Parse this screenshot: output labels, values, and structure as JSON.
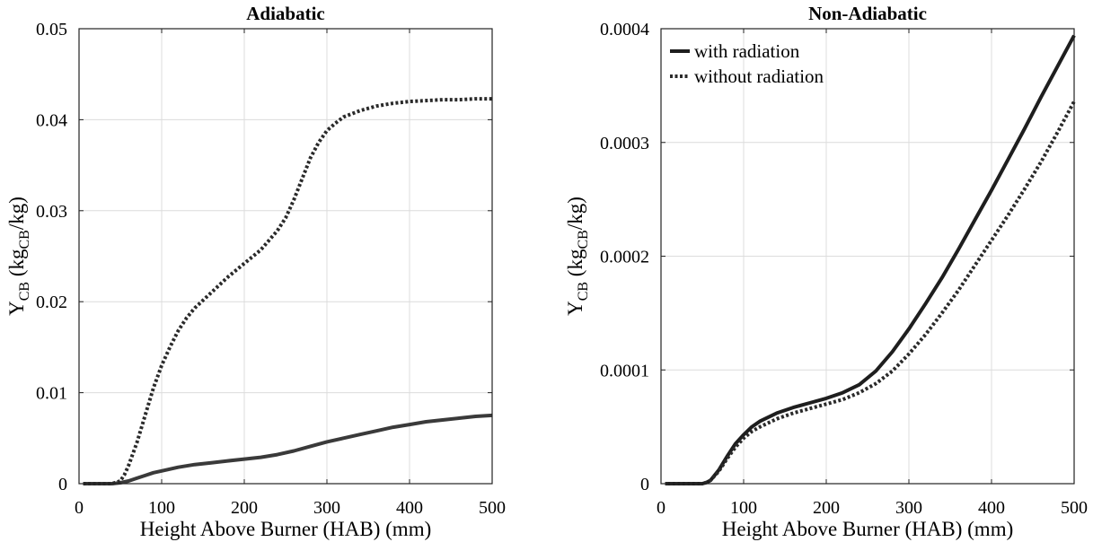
{
  "chart_data": [
    {
      "type": "line",
      "title": "Adiabatic",
      "xlabel": "Height Above Burner (HAB) (mm)",
      "ylabel": {
        "main": "Y",
        "main_sub": "CB",
        "unit_pre": " (kg",
        "unit_sub": "CB",
        "unit_post": "/kg)"
      },
      "xlim": [
        0,
        500
      ],
      "ylim": [
        0,
        0.05
      ],
      "xticks": [
        0,
        100,
        200,
        300,
        400,
        500
      ],
      "xtick_labels": [
        "0",
        "100",
        "200",
        "300",
        "400",
        "500"
      ],
      "yticks": [
        0,
        0.01,
        0.02,
        0.03,
        0.04,
        0.05
      ],
      "ytick_labels": [
        "0",
        "0.01",
        "0.02",
        "0.03",
        "0.04",
        "0.05"
      ],
      "grid": true,
      "series": [
        {
          "style": "solid",
          "color": "#3a3a3a",
          "x": [
            5,
            40,
            50,
            60,
            70,
            80,
            90,
            100,
            120,
            140,
            160,
            180,
            200,
            220,
            240,
            260,
            280,
            300,
            320,
            340,
            360,
            380,
            400,
            420,
            440,
            460,
            480,
            500
          ],
          "y": [
            0,
            0,
            0.0001,
            0.0003,
            0.0006,
            0.0009,
            0.0012,
            0.0014,
            0.0018,
            0.0021,
            0.0023,
            0.0025,
            0.0027,
            0.0029,
            0.0032,
            0.0036,
            0.0041,
            0.0046,
            0.005,
            0.0054,
            0.0058,
            0.0062,
            0.0065,
            0.0068,
            0.007,
            0.0072,
            0.0074,
            0.0075
          ]
        },
        {
          "style": "dotted",
          "color": "#2a2a2a",
          "x": [
            5,
            40,
            50,
            55,
            60,
            70,
            80,
            90,
            100,
            110,
            120,
            130,
            140,
            160,
            180,
            200,
            220,
            240,
            250,
            260,
            270,
            280,
            290,
            300,
            310,
            320,
            340,
            360,
            380,
            400,
            420,
            440,
            460,
            480,
            500
          ],
          "y": [
            0,
            0,
            0.0003,
            0.001,
            0.002,
            0.0045,
            0.0075,
            0.0105,
            0.013,
            0.015,
            0.0168,
            0.0182,
            0.0193,
            0.021,
            0.0227,
            0.0242,
            0.0257,
            0.0278,
            0.0292,
            0.0312,
            0.0335,
            0.0358,
            0.0375,
            0.0388,
            0.0396,
            0.0403,
            0.041,
            0.0415,
            0.0418,
            0.042,
            0.0421,
            0.0422,
            0.0422,
            0.0423,
            0.0423
          ]
        }
      ]
    },
    {
      "type": "line",
      "title": "Non-Adiabatic",
      "xlabel": "Height Above Burner (HAB) (mm)",
      "ylabel": {
        "main": "Y",
        "main_sub": "CB",
        "unit_pre": " (kg",
        "unit_sub": "CB",
        "unit_post": "/kg)"
      },
      "xlim": [
        0,
        500
      ],
      "ylim": [
        0,
        0.0004
      ],
      "xticks": [
        0,
        100,
        200,
        300,
        400,
        500
      ],
      "xtick_labels": [
        "0",
        "100",
        "200",
        "300",
        "400",
        "500"
      ],
      "yticks": [
        0,
        0.0001,
        0.0002,
        0.0003,
        0.0004
      ],
      "ytick_labels": [
        "0",
        "0.0001",
        "0.0002",
        "0.0003",
        "0.0004"
      ],
      "grid": true,
      "legend": {
        "position": "top-left"
      },
      "series": [
        {
          "name": "with radiation",
          "style": "solid",
          "color": "#1e1e1e",
          "x": [
            5,
            50,
            55,
            60,
            70,
            80,
            90,
            100,
            110,
            120,
            140,
            160,
            180,
            200,
            220,
            240,
            260,
            280,
            300,
            320,
            340,
            360,
            380,
            400,
            420,
            440,
            460,
            480,
            500
          ],
          "y": [
            0,
            0,
            1e-06,
            3e-06,
            1.2e-05,
            2.4e-05,
            3.5e-05,
            4.3e-05,
            5e-05,
            5.5e-05,
            6.2e-05,
            6.7e-05,
            7.1e-05,
            7.5e-05,
            8e-05,
            8.7e-05,
            9.9e-05,
            0.000116,
            0.000136,
            0.000158,
            0.000181,
            0.000206,
            0.000232,
            0.000258,
            0.000285,
            0.000312,
            0.00034,
            0.000367,
            0.000394
          ]
        },
        {
          "name": "without radiation",
          "style": "dotted",
          "color": "#2a2a2a",
          "x": [
            5,
            50,
            55,
            60,
            70,
            80,
            90,
            100,
            110,
            120,
            140,
            160,
            180,
            200,
            220,
            240,
            260,
            280,
            300,
            320,
            340,
            360,
            380,
            400,
            420,
            440,
            460,
            480,
            500
          ],
          "y": [
            0,
            0,
            1e-06,
            3e-06,
            1.1e-05,
            2.2e-05,
            3.2e-05,
            4e-05,
            4.6e-05,
            5e-05,
            5.7e-05,
            6.2e-05,
            6.6e-05,
            7e-05,
            7.4e-05,
            8e-05,
            8.8e-05,
            9.9e-05,
            0.000114,
            0.000131,
            0.00015,
            0.00017,
            0.000192,
            0.000214,
            0.000236,
            0.000259,
            0.000283,
            0.000309,
            0.000336
          ]
        }
      ]
    }
  ]
}
